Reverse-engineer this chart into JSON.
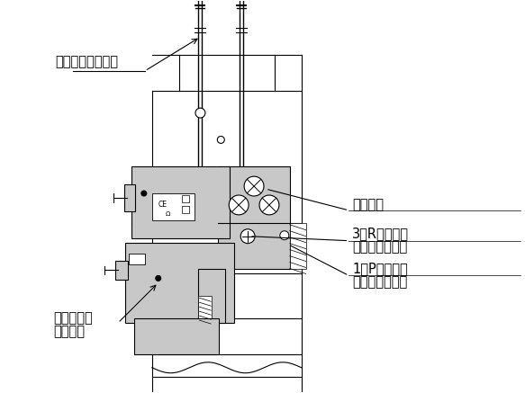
{
  "bg_color": "#ffffff",
  "lc": "#000000",
  "gray": "#b8b8b8",
  "gray2": "#c8c8c8",
  "gray3": "#d4d4d4",
  "lw": 0.8,
  "label_shouki": "初期排気用電磁弁",
  "label_plate": "プレート",
  "label_3R_1": "3（R）ポート",
  "label_3R_2": "（排気ポート）",
  "label_1P_1": "1（P）ポート",
  "label_1P_2": "（加圧ポート）",
  "label_shuki_1": "主期排気用",
  "label_shuki_2": "　電磁弁",
  "fontsize": 10.5
}
